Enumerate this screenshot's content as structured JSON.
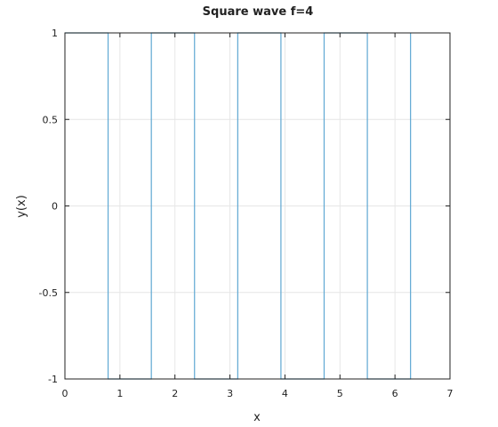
{
  "chart_data": {
    "type": "line",
    "title": "Square wave f=4",
    "xlabel": "x",
    "ylabel": "y(x)",
    "xlim": [
      0,
      7
    ],
    "ylim": [
      -1,
      1
    ],
    "x_ticks": [
      0,
      1,
      2,
      3,
      4,
      5,
      6,
      7
    ],
    "y_ticks": [
      -1,
      -0.5,
      0,
      0.5,
      1
    ],
    "x_tick_labels": [
      "0",
      "1",
      "2",
      "3",
      "4",
      "5",
      "6",
      "7"
    ],
    "y_tick_labels": [
      "-1",
      "-0.5",
      "0",
      "0.5",
      "1"
    ],
    "grid": true,
    "legend": "none",
    "series": [
      {
        "color": "#5fa8d3",
        "x": [
          0,
          0.785,
          0.785,
          1.571,
          1.571,
          2.356,
          2.356,
          3.142,
          3.142,
          3.927,
          3.927,
          4.712,
          4.712,
          5.498,
          5.498,
          6.283,
          6.283
        ],
        "y": [
          1,
          1,
          -1,
          -1,
          1,
          1,
          -1,
          -1,
          1,
          1,
          -1,
          -1,
          1,
          1,
          -1,
          -1,
          1
        ]
      }
    ]
  }
}
